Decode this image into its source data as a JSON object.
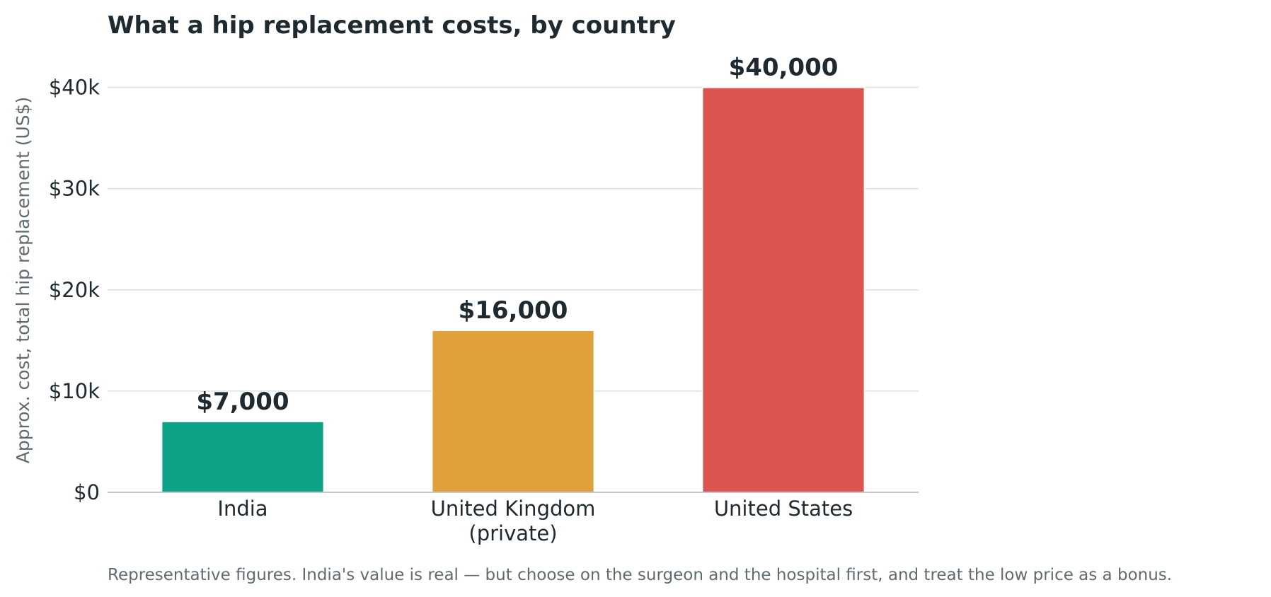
{
  "chart_data": {
    "type": "bar",
    "title": "What a hip replacement costs, by country",
    "ylabel": "Approx. cost, total hip replacement (US$)",
    "xlabel": "",
    "categories": [
      [
        "India"
      ],
      [
        "United Kingdom",
        "(private)"
      ],
      [
        "United States"
      ]
    ],
    "values": [
      7000,
      16000,
      40000
    ],
    "value_labels": [
      "$7,000",
      "$16,000",
      "$40,000"
    ],
    "colors": [
      "#0ea387",
      "#e0a03b",
      "#db5450"
    ],
    "ylim": [
      0,
      45000
    ],
    "yticks": [
      0,
      10000,
      20000,
      30000,
      40000
    ],
    "ytick_labels": [
      "$0",
      "$10k",
      "$20k",
      "$30k",
      "$40k"
    ],
    "grid": true,
    "legend": "none",
    "footnote": "Representative figures. India's value is real — but choose on the surgeon and the hospital first, and treat the low price as a bonus."
  }
}
